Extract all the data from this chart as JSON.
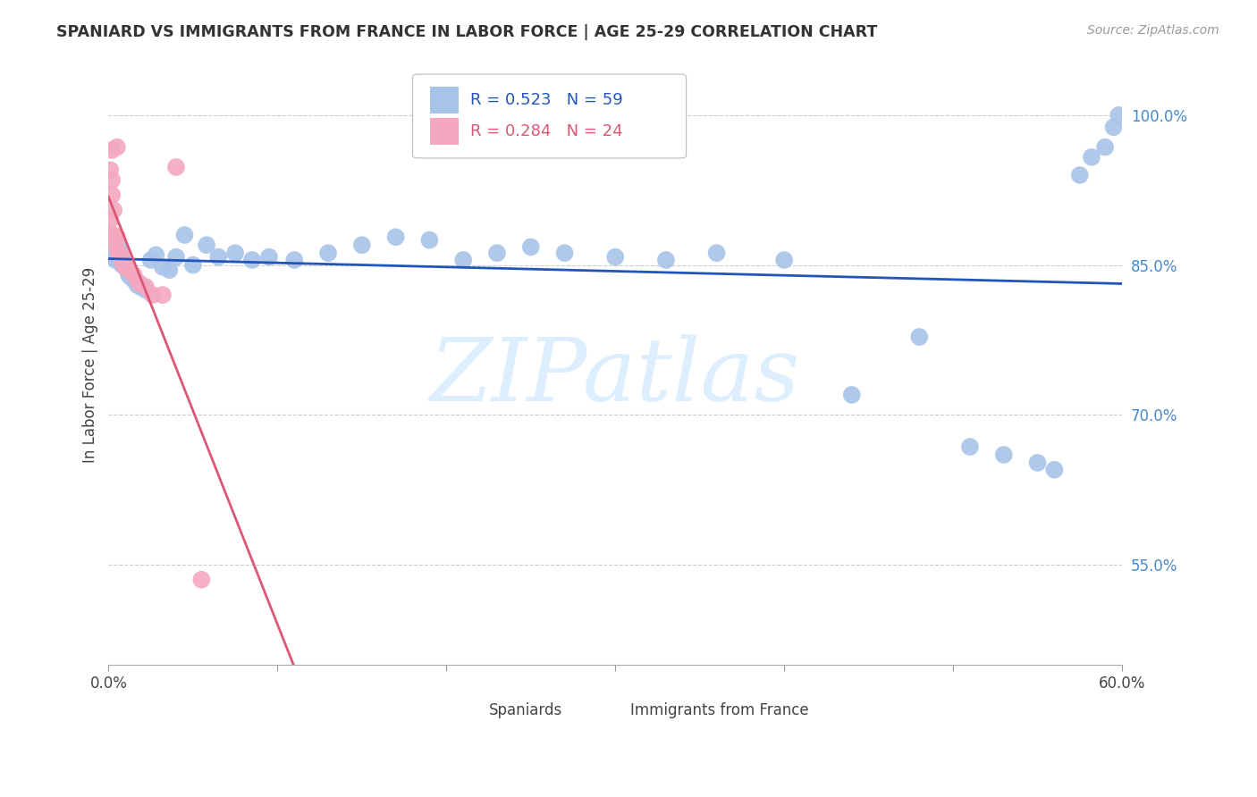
{
  "title": "SPANIARD VS IMMIGRANTS FROM FRANCE IN LABOR FORCE | AGE 25-29 CORRELATION CHART",
  "source": "Source: ZipAtlas.com",
  "ylabel": "In Labor Force | Age 25-29",
  "right_ytick_vals": [
    1.0,
    0.85,
    0.7,
    0.55
  ],
  "right_ytick_labels": [
    "100.0%",
    "85.0%",
    "70.0%",
    "55.0%"
  ],
  "blue_color": "#a8c4e8",
  "pink_color": "#f4a8bf",
  "blue_line_color": "#2255bb",
  "pink_line_color": "#dd5577",
  "legend_blue_text_color": "#2255bb",
  "legend_pink_text_color": "#dd5577",
  "right_axis_color": "#4488cc",
  "watermark_color": "#ddeeff",
  "background_color": "#ffffff",
  "grid_color": "#cccccc",
  "xlim": [
    0.0,
    0.6
  ],
  "ylim": [
    0.45,
    1.05
  ],
  "blue_x": [
    0.001,
    0.002,
    0.003,
    0.003,
    0.004,
    0.004,
    0.005,
    0.005,
    0.006,
    0.006,
    0.007,
    0.007,
    0.008,
    0.008,
    0.009,
    0.01,
    0.011,
    0.012,
    0.013,
    0.015,
    0.017,
    0.019,
    0.022,
    0.025,
    0.028,
    0.032,
    0.036,
    0.04,
    0.045,
    0.05,
    0.058,
    0.065,
    0.075,
    0.085,
    0.095,
    0.11,
    0.13,
    0.15,
    0.17,
    0.19,
    0.21,
    0.23,
    0.25,
    0.27,
    0.3,
    0.33,
    0.36,
    0.4,
    0.44,
    0.48,
    0.51,
    0.53,
    0.55,
    0.56,
    0.575,
    0.582,
    0.59,
    0.595,
    0.598
  ],
  "blue_y": [
    0.875,
    0.87,
    0.862,
    0.858,
    0.855,
    0.868,
    0.862,
    0.875,
    0.858,
    0.87,
    0.855,
    0.862,
    0.85,
    0.856,
    0.85,
    0.848,
    0.845,
    0.84,
    0.838,
    0.835,
    0.83,
    0.828,
    0.825,
    0.855,
    0.86,
    0.848,
    0.845,
    0.858,
    0.88,
    0.85,
    0.87,
    0.858,
    0.862,
    0.855,
    0.858,
    0.855,
    0.862,
    0.87,
    0.878,
    0.875,
    0.855,
    0.862,
    0.868,
    0.862,
    0.858,
    0.855,
    0.862,
    0.855,
    0.72,
    0.778,
    0.668,
    0.66,
    0.652,
    0.645,
    0.94,
    0.958,
    0.968,
    0.988,
    1.0
  ],
  "pink_x": [
    0.001,
    0.001,
    0.002,
    0.002,
    0.002,
    0.003,
    0.003,
    0.004,
    0.004,
    0.005,
    0.005,
    0.006,
    0.007,
    0.008,
    0.009,
    0.01,
    0.012,
    0.015,
    0.018,
    0.022,
    0.026,
    0.032,
    0.04,
    0.055
  ],
  "pink_y": [
    0.895,
    0.945,
    0.935,
    0.965,
    0.92,
    0.905,
    0.88,
    0.878,
    0.87,
    0.968,
    0.878,
    0.862,
    0.86,
    0.855,
    0.85,
    0.848,
    0.845,
    0.84,
    0.832,
    0.828,
    0.82,
    0.82,
    0.948,
    0.535
  ],
  "xtick_vals": [
    0.0,
    0.1,
    0.2,
    0.3,
    0.4,
    0.5,
    0.6
  ],
  "xtick_labels": [
    "0.0%",
    "",
    "",
    "",
    "",
    "",
    "60.0%"
  ]
}
